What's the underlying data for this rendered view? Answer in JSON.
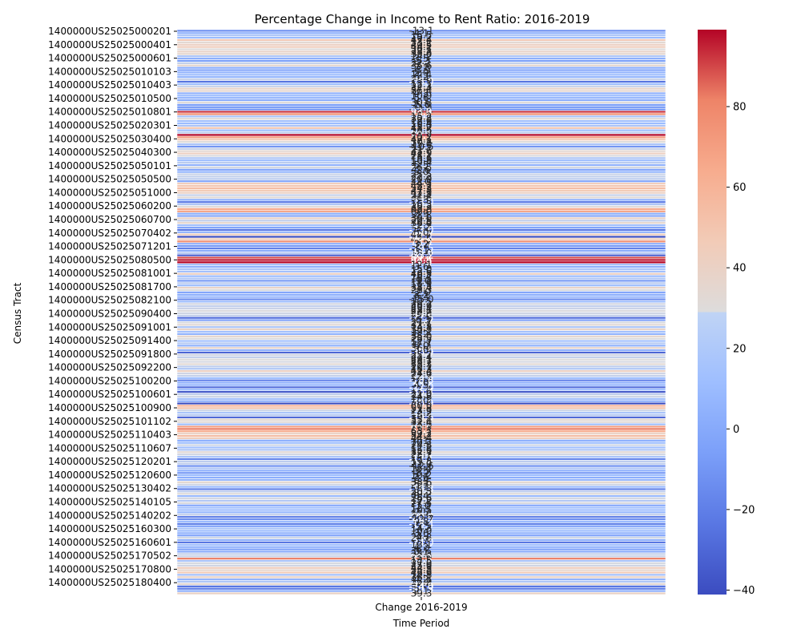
{
  "chart_data": {
    "type": "heatmap",
    "title": "Percentage Change in Income to Rent Ratio: 2016-2019",
    "xlabel": "Time Period",
    "ylabel": "Census Tract",
    "x_categories": [
      "Change 2016-2019"
    ],
    "y_tick_labels": [
      "1400000US25025000201",
      "1400000US25025000401",
      "1400000US25025000601",
      "1400000US25025010103",
      "1400000US25025010403",
      "1400000US25025010500",
      "1400000US25025010801",
      "1400000US25025020301",
      "1400000US25025030400",
      "1400000US25025040300",
      "1400000US25025050101",
      "1400000US25025050500",
      "1400000US25025051000",
      "1400000US25025060200",
      "1400000US25025060700",
      "1400000US25025070402",
      "1400000US25025071201",
      "1400000US25025080500",
      "1400000US25025081001",
      "1400000US25025081700",
      "1400000US25025082100",
      "1400000US25025090400",
      "1400000US25025091001",
      "1400000US25025091400",
      "1400000US25025091800",
      "1400000US25025092200",
      "1400000US25025100200",
      "1400000US25025100601",
      "1400000US25025100900",
      "1400000US25025101102",
      "1400000US25025110403",
      "1400000US25025110607",
      "1400000US25025120201",
      "1400000US25025120600",
      "1400000US25025130402",
      "1400000US25025140105",
      "1400000US25025140202",
      "1400000US25025160300",
      "1400000US25025160601",
      "1400000US25025170502",
      "1400000US25025170800",
      "1400000US25025180400"
    ],
    "values": [
      -13.1,
      4.1,
      15.5,
      10.2,
      47.4,
      33.2,
      40.5,
      44.2,
      30.1,
      38.2,
      35.0,
      14.2,
      3.5,
      -5.3,
      22.1,
      35.6,
      2.1,
      -3.9,
      5.9,
      12.4,
      6.2,
      23.6,
      -25.0,
      12.1,
      22.3,
      37.4,
      35.4,
      4.3,
      10.9,
      5.6,
      2.1,
      30.8,
      -5.0,
      -9.3,
      -11.1,
      93.0,
      76.4,
      15.2,
      30.8,
      12.6,
      10.4,
      15.0,
      48.7,
      11.6,
      20.3,
      99.1,
      70.2,
      47.1,
      30.2,
      15.0,
      -10.5,
      21.7,
      33.6,
      41.9,
      28.1,
      15.6,
      10.8,
      19.4,
      5.5,
      26.5,
      -2.6,
      5.0,
      23.5,
      21.3,
      20.0,
      -2.0,
      44.5,
      48.7,
      54.3,
      47.8,
      41.3,
      22.1,
      31.8,
      5.3,
      -23.0,
      16.3,
      30.3,
      63.8,
      68.0,
      2.9,
      -2.1,
      39.0,
      20.8,
      36.0,
      12.3,
      -3.2,
      -23.0,
      5.0,
      42.7,
      -41.1,
      42.5,
      75.6,
      3.2,
      -8.4,
      -19.5,
      1.1,
      18.0,
      -33.2,
      89.2,
      97.5,
      99.0,
      12.1,
      3.6,
      15.0,
      12.6,
      40.3,
      10.2,
      16.5,
      -9.0,
      18.9,
      11.5,
      38.4,
      28.3,
      -2.0,
      3.2,
      6.3,
      -15.0,
      10.5,
      26.2,
      20.9,
      23.4,
      28.1,
      24.9,
      22.0,
      -27.5,
      -6.3,
      27.7,
      32.1,
      14.8,
      38.3,
      13.1,
      5.2,
      35.0,
      28.5,
      12.7,
      17.7,
      5.0,
      36.4,
      3.0,
      -30.9,
      25.7,
      21.4,
      29.1,
      26.7,
      33.3,
      20.1,
      16.3,
      41.4,
      24.6,
      22.7,
      11.3,
      -18.8,
      2.0,
      4.5,
      -27.0,
      11.4,
      -36.4,
      21.0,
      24.8,
      13.5,
      2.0,
      -40.9,
      60.0,
      51.3,
      23.9,
      14.2,
      18.3,
      -29.6,
      33.4,
      32.4,
      11.6,
      70.1,
      82.5,
      63.7,
      39.2,
      54.2,
      44.4,
      4.1,
      10.7,
      24.8,
      12.2,
      15.6,
      32.7,
      25.7,
      14.7,
      -17.1,
      19.8,
      21.0,
      -12.6,
      15.4,
      3.5,
      -8.2,
      10.2,
      2.6,
      6.4,
      33.6,
      25.0,
      9.1,
      -19.8,
      20.3,
      30.2,
      8.4,
      26.6,
      17.2,
      27.5,
      -1.0,
      12.1,
      10.5,
      7.5,
      22.0,
      -20.4,
      -12.7,
      9.8,
      -18.4,
      -5.5,
      14.3,
      10.0,
      3.6,
      -3.1,
      24.8,
      3.7,
      -24.0,
      13.1,
      4.2,
      -6.2,
      0.1,
      22.3,
      23.6,
      82.3,
      14.5,
      27.0,
      25.0,
      44.3,
      35.8,
      46.6,
      12.8,
      38.1,
      4.2,
      15.9,
      34.4,
      -24.0,
      -20.3,
      2.1,
      39.3
    ],
    "colorbar": {
      "min": -41.1,
      "max": 99.1,
      "ticks": [
        "80",
        "60",
        "40",
        "20",
        "0",
        "−20",
        "−40"
      ],
      "tick_values": [
        80,
        60,
        40,
        20,
        0,
        -20,
        -40
      ]
    },
    "colormap": "coolwarm",
    "grid": false
  },
  "colors": {
    "cool": "#3b4cc0",
    "neutral": "#dddddd",
    "warm": "#b40426"
  }
}
